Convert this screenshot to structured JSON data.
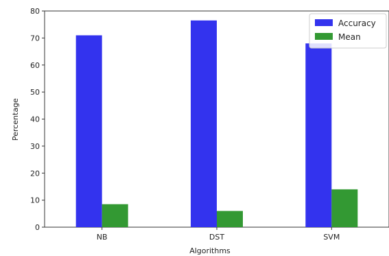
{
  "chart_data": {
    "type": "bar",
    "title": "",
    "xlabel": "Algorithms",
    "ylabel": "Percentage",
    "categories": [
      "NB",
      "DST",
      "SVM"
    ],
    "series": [
      {
        "name": "Accuracy",
        "color": "#3333ee",
        "values": [
          71,
          76.5,
          68
        ]
      },
      {
        "name": "Mean",
        "color": "#339933",
        "values": [
          8.5,
          6,
          14
        ]
      }
    ],
    "ylim": [
      0,
      80
    ],
    "yticks": [
      "0",
      "10",
      "20",
      "30",
      "40",
      "50",
      "60",
      "70",
      "80"
    ],
    "grid": false,
    "legend_position": "top-right"
  }
}
